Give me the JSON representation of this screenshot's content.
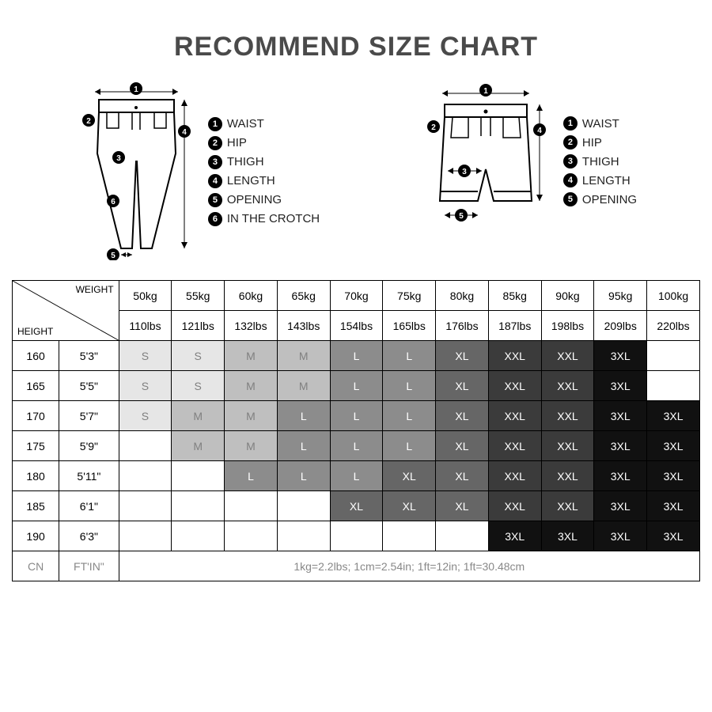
{
  "title": "RECOMMEND SIZE CHART",
  "legend_pants": [
    {
      "n": "1",
      "label": "WAIST"
    },
    {
      "n": "2",
      "label": "HIP"
    },
    {
      "n": "3",
      "label": "THIGH"
    },
    {
      "n": "4",
      "label": "LENGTH"
    },
    {
      "n": "5",
      "label": "OPENING"
    },
    {
      "n": "6",
      "label": "IN THE CROTCH"
    }
  ],
  "legend_shorts": [
    {
      "n": "1",
      "label": "WAIST"
    },
    {
      "n": "2",
      "label": "HIP"
    },
    {
      "n": "3",
      "label": "THIGH"
    },
    {
      "n": "4",
      "label": "LENGTH"
    },
    {
      "n": "5",
      "label": "OPENING"
    }
  ],
  "corner": {
    "weight": "WEIGHT",
    "height": "HEIGHT"
  },
  "weights_kg": [
    "50kg",
    "55kg",
    "60kg",
    "65kg",
    "70kg",
    "75kg",
    "80kg",
    "85kg",
    "90kg",
    "95kg",
    "100kg"
  ],
  "weights_lbs": [
    "110lbs",
    "121lbs",
    "132lbs",
    "143lbs",
    "154lbs",
    "165lbs",
    "176lbs",
    "187lbs",
    "198lbs",
    "209lbs",
    "220lbs"
  ],
  "heights": [
    {
      "cn": "160",
      "ft": "5'3\""
    },
    {
      "cn": "165",
      "ft": "5'5\""
    },
    {
      "cn": "170",
      "ft": "5'7\""
    },
    {
      "cn": "175",
      "ft": "5'9\""
    },
    {
      "cn": "180",
      "ft": "5'11\""
    },
    {
      "cn": "185",
      "ft": "6'1\""
    },
    {
      "cn": "190",
      "ft": "6'3\""
    }
  ],
  "footer_labels": {
    "cn": "CN",
    "ft": "FT'IN\""
  },
  "footer_note": "1kg=2.2lbs; 1cm=2.54in; 1ft=12in; 1ft=30.48cm",
  "size_colors": {
    "S": {
      "bg": "#e6e6e6",
      "fg": "#808080"
    },
    "M": {
      "bg": "#bfbfbf",
      "fg": "#808080"
    },
    "L": {
      "bg": "#8c8c8c",
      "fg": "#ffffff"
    },
    "XL": {
      "bg": "#666666",
      "fg": "#ffffff"
    },
    "XXL": {
      "bg": "#3b3b3b",
      "fg": "#ffffff"
    },
    "3XL": {
      "bg": "#111111",
      "fg": "#ffffff"
    },
    "": {
      "bg": "#ffffff",
      "fg": "#ffffff"
    }
  },
  "grid": [
    [
      "S",
      "S",
      "M",
      "M",
      "L",
      "L",
      "XL",
      "XXL",
      "XXL",
      "3XL",
      ""
    ],
    [
      "S",
      "S",
      "M",
      "M",
      "L",
      "L",
      "XL",
      "XXL",
      "XXL",
      "3XL",
      ""
    ],
    [
      "S",
      "M",
      "M",
      "L",
      "L",
      "L",
      "XL",
      "XXL",
      "XXL",
      "3XL",
      "3XL"
    ],
    [
      "",
      "M",
      "M",
      "L",
      "L",
      "L",
      "XL",
      "XXL",
      "XXL",
      "3XL",
      "3XL"
    ],
    [
      "",
      "",
      "L",
      "L",
      "L",
      "XL",
      "XL",
      "XXL",
      "XXL",
      "3XL",
      "3XL"
    ],
    [
      "",
      "",
      "",
      "",
      "XL",
      "XL",
      "XL",
      "XXL",
      "XXL",
      "3XL",
      "3XL"
    ],
    [
      "",
      "",
      "",
      "",
      "",
      "",
      "",
      "3XL",
      "3XL",
      "3XL",
      "3XL"
    ]
  ],
  "col_widths": {
    "h_cn": 55,
    "h_ft": 70,
    "w": 62
  }
}
